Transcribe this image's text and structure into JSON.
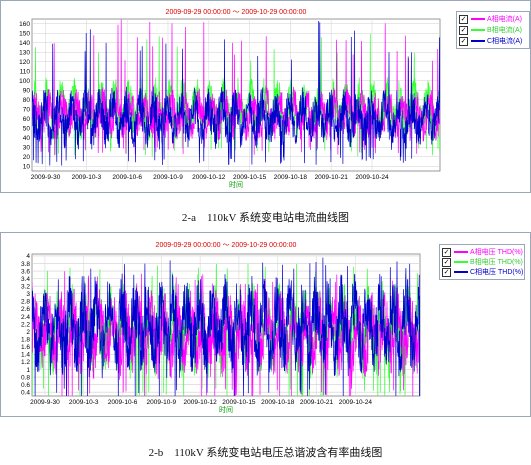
{
  "charts": [
    {
      "chart_data": {
        "type": "line",
        "title": "2009-09-29 00:00:00 ～ 2009-10-29 00:00:00",
        "xlabel": "时间",
        "ylabel": "",
        "x_ticks": [
          "2009-9-30",
          "2009-10-3",
          "2009-10-6",
          "2009-10-9",
          "2009-10-12",
          "2009-10-15",
          "2009-10-18",
          "2009-10-21",
          "2009-10-24"
        ],
        "y_ticks": [
          10,
          20,
          30,
          40,
          50,
          60,
          70,
          80,
          90,
          100,
          110,
          120,
          130,
          140,
          150,
          160
        ],
        "ylim": [
          5,
          165
        ],
        "x_range_days": [
          0,
          30
        ],
        "grid": true,
        "legend_position": "top-right",
        "series": [
          {
            "name": "A相电流(A)",
            "color": "#ff00ff",
            "typical_range": [
              30,
              90
            ],
            "peak_max": 165
          },
          {
            "name": "B相电流(A)",
            "color": "#33ff33",
            "typical_range": [
              30,
              100
            ],
            "peak_max": 150
          },
          {
            "name": "C相电流(A)",
            "color": "#0000cc",
            "typical_range": [
              20,
              90
            ],
            "peak_max": 163
          }
        ]
      },
      "caption": "2-a　110kV 系统变电站电流曲线图"
    },
    {
      "chart_data": {
        "type": "line",
        "title": "2009-09-29 00:00:00 ～ 2009-10-29 00:00:00",
        "xlabel": "时间",
        "ylabel": "",
        "x_ticks": [
          "2009-9-30",
          "2009-10-3",
          "2009-10-6",
          "2009-10-9",
          "2009-10-12",
          "2009-10-15",
          "2009-10-18",
          "2009-10-21",
          "2009-10-24"
        ],
        "y_ticks": [
          "0.4",
          "0.6",
          "0.8",
          "1",
          "1.2",
          "1.4",
          "1.6",
          "1.8",
          "2",
          "2.2",
          "2.4",
          "2.6",
          "2.8",
          "3",
          "3.2",
          "3.4",
          "3.6",
          "3.8",
          "4"
        ],
        "ylim": [
          0.3,
          4.05
        ],
        "x_range_days": [
          0,
          30
        ],
        "grid": true,
        "legend_position": "top-right",
        "series": [
          {
            "name": "A相电压 THD(%)",
            "color": "#ff00ff",
            "typical_range": [
              0.5,
              3.0
            ],
            "peak_max": 3.6
          },
          {
            "name": "B相电压 THD(%)",
            "color": "#33ff33",
            "typical_range": [
              0.5,
              3.2
            ],
            "peak_max": 3.8
          },
          {
            "name": "C相电压 THD(%)",
            "color": "#0000cc",
            "typical_range": [
              0.5,
              3.4
            ],
            "peak_max": 4.0
          }
        ]
      },
      "caption": "2-b　110kV 系统变电站电压总谐波含有率曲线图"
    }
  ],
  "legend_check": "✓"
}
